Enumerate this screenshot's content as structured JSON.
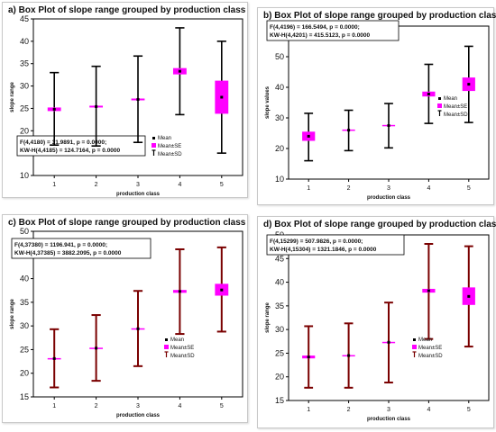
{
  "colors": {
    "mean_fill": "#000000",
    "se_fill": "#ff00ff",
    "whisker": "#000000",
    "whisker_dark": "#7a0000",
    "frame": "#000000"
  },
  "chart_data": [
    {
      "type": "box",
      "title": "a) Box Plot of slope range grouped by production class",
      "xlabel": "production class",
      "ylabel": "slope range",
      "categories": [
        "1",
        "2",
        "3",
        "4",
        "5"
      ],
      "ylim": [
        10,
        45
      ],
      "yticks": [
        10,
        15,
        20,
        25,
        30,
        35,
        40,
        45
      ],
      "mean": [
        24.8,
        25.4,
        27.0,
        33.3,
        27.5
      ],
      "se_low": [
        24.4,
        25.2,
        26.8,
        32.6,
        23.8
      ],
      "se_high": [
        25.2,
        25.6,
        27.2,
        34.0,
        31.2
      ],
      "sd_low": [
        16.8,
        16.6,
        17.4,
        23.6,
        15.0
      ],
      "sd_high": [
        33.0,
        34.4,
        36.7,
        43.0,
        40.0
      ],
      "stats": [
        "F(4,4180) = 31.9891, p = 0.0000;",
        "KW-H(4,4185) = 124.7164, p = 0.0000"
      ],
      "legend": [
        "Mean",
        "Mean±SE",
        "Mean±SD"
      ],
      "whisker_color": "#000000"
    },
    {
      "type": "box",
      "title": "b) Box Plot of slope range grouped by production class",
      "xlabel": "production class",
      "ylabel": "slope values",
      "categories": [
        "1",
        "2",
        "3",
        "4",
        "5"
      ],
      "ylim": [
        10,
        60
      ],
      "yticks": [
        10,
        20,
        30,
        40,
        50,
        60
      ],
      "mean": [
        24.0,
        26.0,
        27.5,
        37.8,
        41.0
      ],
      "se_low": [
        22.5,
        25.8,
        27.3,
        37.0,
        38.8
      ],
      "se_high": [
        25.5,
        26.2,
        27.7,
        38.6,
        43.2
      ],
      "sd_low": [
        16.0,
        19.3,
        20.2,
        28.2,
        28.5
      ],
      "sd_high": [
        31.5,
        32.5,
        34.7,
        47.5,
        53.4
      ],
      "stats": [
        "F(4,4196) = 166.5494, p = 0.0000;",
        "KW-H(4,4201) = 415.5123, p = 0.0000"
      ],
      "legend": [
        "Mean",
        "Mean±SE",
        "Mean±SD"
      ],
      "whisker_color": "#000000"
    },
    {
      "type": "box",
      "title": "c) Box Plot of slope range grouped by production class",
      "xlabel": "production class",
      "ylabel": "slope range",
      "categories": [
        "1",
        "2",
        "3",
        "4",
        "5"
      ],
      "ylim": [
        15,
        50
      ],
      "yticks": [
        15,
        20,
        25,
        30,
        35,
        40,
        45,
        50
      ],
      "mean": [
        23.1,
        25.3,
        29.4,
        37.3,
        37.6
      ],
      "se_low": [
        23.0,
        25.2,
        29.3,
        37.0,
        36.4
      ],
      "se_high": [
        23.2,
        25.4,
        29.5,
        37.6,
        38.9
      ],
      "sd_low": [
        17.0,
        18.4,
        21.5,
        28.3,
        28.8
      ],
      "sd_high": [
        29.3,
        32.3,
        37.4,
        46.2,
        46.6
      ],
      "stats": [
        "F(4,37380) = 1196.941, p = 0.0000;",
        "KW-H(4,37385) = 3882.2095, p = 0.0000"
      ],
      "legend": [
        "Mean",
        "Mean±SE",
        "Mean±SD"
      ],
      "whisker_color": "#7a0000"
    },
    {
      "type": "box",
      "title": "d) Box Plot of slope range grouped by production class",
      "xlabel": "production class",
      "ylabel": "slope range",
      "categories": [
        "1",
        "2",
        "3",
        "4",
        "5"
      ],
      "ylim": [
        15,
        50
      ],
      "yticks": [
        15,
        20,
        25,
        30,
        35,
        40,
        45,
        50
      ],
      "mean": [
        24.2,
        24.5,
        27.3,
        38.2,
        37.0
      ],
      "se_low": [
        23.9,
        24.4,
        27.2,
        37.8,
        35.2
      ],
      "se_high": [
        24.5,
        24.6,
        27.4,
        38.6,
        38.9
      ],
      "sd_low": [
        17.7,
        17.7,
        18.8,
        28.0,
        26.4
      ],
      "sd_high": [
        30.7,
        31.3,
        35.7,
        48.1,
        47.6
      ],
      "stats": [
        "F(4,15299) = 507.9826, p = 0.0000;",
        "KW-H(4,15304) = 1321.1846, p = 0.0000"
      ],
      "legend": [
        "Mean",
        "Mean±SE",
        "Mean±SD"
      ],
      "whisker_color": "#7a0000"
    }
  ]
}
